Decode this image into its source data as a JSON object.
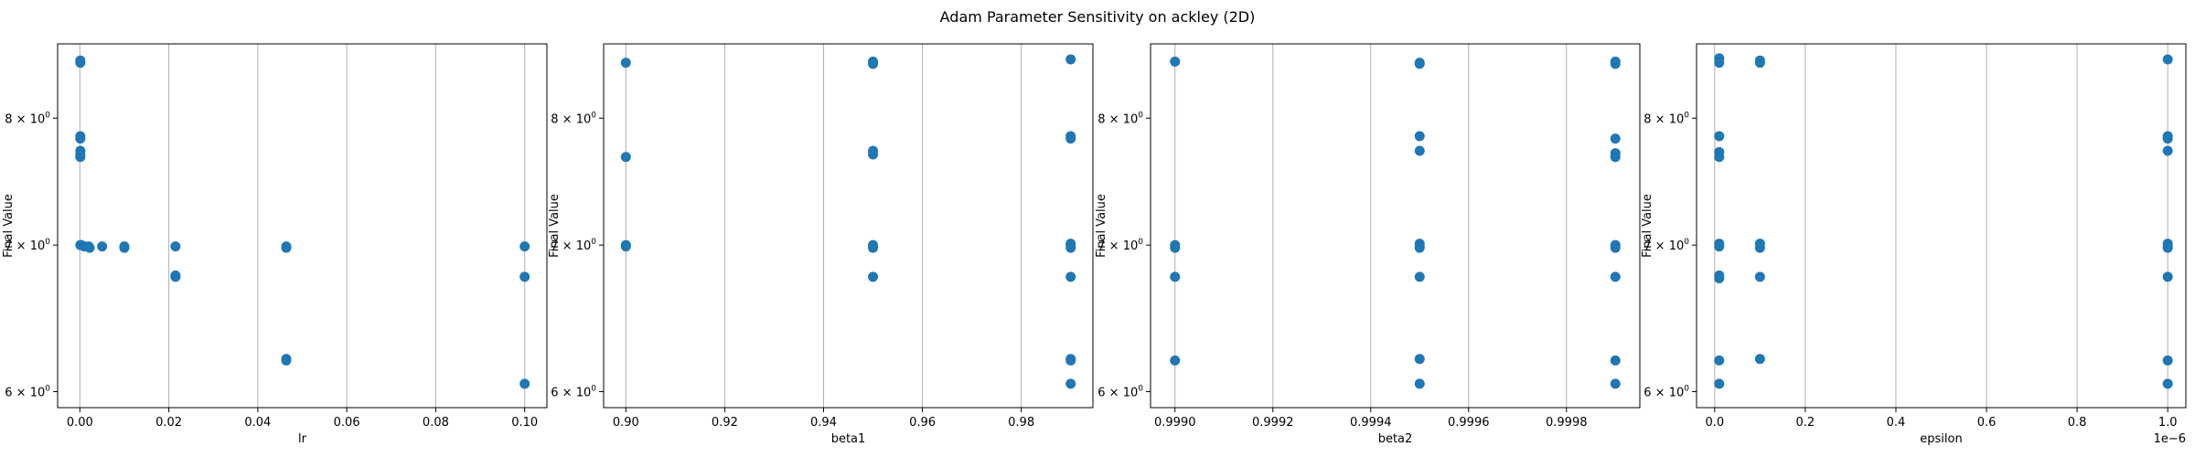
{
  "figure": {
    "title": "Adam Parameter Sensitivity on ackley (2D)",
    "marker_color": "#1f77b4",
    "grid_color": "#b0b0b0"
  },
  "chart_data": [
    {
      "type": "scatter",
      "xlabel": "lr",
      "ylabel": "Final Value",
      "xlim": [
        -0.005,
        0.105
      ],
      "ylim": [
        5.9,
        8.65
      ],
      "yscale": "log",
      "grid": "x-axis only",
      "xticks": [
        0.0,
        0.02,
        0.04,
        0.06,
        0.08,
        0.1
      ],
      "xtick_labels": [
        "0.00",
        "0.02",
        "0.04",
        "0.06",
        "0.08",
        "0.10"
      ],
      "yticks": [
        6,
        7,
        8
      ],
      "ytick_labels": [
        [
          "6",
          "0"
        ],
        [
          "7",
          "0"
        ],
        [
          "8",
          "0"
        ]
      ],
      "axis_offset": "",
      "x": [
        0.0001,
        0.0001,
        0.0001,
        0.0001,
        0.0001,
        0.0001,
        0.0001,
        0.0001,
        0.0003,
        0.001,
        0.002,
        0.0022,
        0.005,
        0.01,
        0.01,
        0.0215,
        0.0215,
        0.0215,
        0.0464,
        0.0464,
        0.0464,
        0.0464,
        0.1,
        0.1,
        0.1
      ],
      "y": [
        8.5,
        8.48,
        7.85,
        7.83,
        7.73,
        7.7,
        7.68,
        7.0,
        7.0,
        6.99,
        6.99,
        6.98,
        6.99,
        6.99,
        6.98,
        6.99,
        6.78,
        6.77,
        6.99,
        6.98,
        6.21,
        6.2,
        6.99,
        6.77,
        6.05
      ]
    },
    {
      "type": "scatter",
      "xlabel": "beta1",
      "ylabel": "Final Value",
      "xlim": [
        0.8955,
        0.9945
      ],
      "ylim": [
        5.9,
        8.65
      ],
      "yscale": "log",
      "grid": "x-axis only",
      "xticks": [
        0.9,
        0.92,
        0.94,
        0.96,
        0.98
      ],
      "xtick_labels": [
        "0.90",
        "0.92",
        "0.94",
        "0.96",
        "0.98"
      ],
      "yticks": [
        6,
        7,
        8
      ],
      "ytick_labels": [
        [
          "6",
          "0"
        ],
        [
          "7",
          "0"
        ],
        [
          "8",
          "0"
        ]
      ],
      "axis_offset": "",
      "x": [
        0.9,
        0.9,
        0.9,
        0.9,
        0.95,
        0.95,
        0.95,
        0.95,
        0.95,
        0.95,
        0.95,
        0.99,
        0.99,
        0.99,
        0.99,
        0.99,
        0.99,
        0.99,
        0.99,
        0.99,
        0.99
      ],
      "y": [
        8.48,
        7.68,
        7.0,
        6.99,
        8.49,
        8.47,
        7.73,
        7.7,
        7.0,
        6.98,
        6.77,
        8.51,
        7.85,
        7.83,
        7.01,
        7.0,
        6.98,
        6.77,
        6.21,
        6.2,
        6.05
      ]
    },
    {
      "type": "scatter",
      "xlabel": "beta2",
      "ylabel": "Final Value",
      "xlim": [
        0.99895,
        0.99995
      ],
      "ylim": [
        5.9,
        8.65
      ],
      "yscale": "log",
      "grid": "x-axis only",
      "xticks": [
        0.999,
        0.9992,
        0.9994,
        0.9996,
        0.9998
      ],
      "xtick_labels": [
        "0.9990",
        "0.9992",
        "0.9994",
        "0.9996",
        "0.9998"
      ],
      "yticks": [
        6,
        7,
        8
      ],
      "ytick_labels": [
        [
          "6",
          "0"
        ],
        [
          "7",
          "0"
        ],
        [
          "8",
          "0"
        ]
      ],
      "axis_offset": "",
      "x": [
        0.999,
        0.999,
        0.999,
        0.999,
        0.999,
        0.9995,
        0.9995,
        0.9995,
        0.9995,
        0.9995,
        0.9995,
        0.9995,
        0.9995,
        0.9995,
        0.9995,
        0.9999,
        0.9999,
        0.9999,
        0.9999,
        0.9999,
        0.9999,
        0.9999,
        0.9999,
        0.9999,
        0.9999
      ],
      "y": [
        8.49,
        7.0,
        6.98,
        6.77,
        6.2,
        8.48,
        8.47,
        7.85,
        7.73,
        7.01,
        6.99,
        6.98,
        6.77,
        6.21,
        6.05,
        8.49,
        8.47,
        7.83,
        7.71,
        7.68,
        7.0,
        6.98,
        6.77,
        6.2,
        6.05
      ]
    },
    {
      "type": "scatter",
      "xlabel": "epsilon",
      "ylabel": "Final Value",
      "xlim": [
        -0.04,
        1.04
      ],
      "ylim": [
        5.9,
        8.65
      ],
      "yscale": "log",
      "grid": "x-axis only",
      "xticks": [
        0.0,
        0.2,
        0.4,
        0.6,
        0.8,
        1.0
      ],
      "xtick_labels": [
        "0.0",
        "0.2",
        "0.4",
        "0.6",
        "0.8",
        "1.0"
      ],
      "yticks": [
        6,
        7,
        8
      ],
      "ytick_labels": [
        [
          "6",
          "0"
        ],
        [
          "7",
          "0"
        ],
        [
          "8",
          "0"
        ]
      ],
      "axis_offset": "1e−6",
      "x": [
        0.01,
        0.01,
        0.01,
        0.01,
        0.01,
        0.01,
        0.01,
        0.01,
        0.01,
        0.01,
        0.01,
        0.1,
        0.1,
        0.1,
        0.1,
        0.1,
        0.1,
        1.0,
        1.0,
        1.0,
        1.0,
        1.0,
        1.0,
        1.0,
        1.0,
        1.0,
        1.0
      ],
      "y": [
        8.52,
        8.48,
        7.85,
        7.72,
        7.68,
        7.01,
        6.99,
        6.78,
        6.76,
        6.2,
        6.05,
        8.5,
        8.48,
        7.01,
        6.98,
        6.77,
        6.21,
        8.51,
        7.85,
        7.83,
        7.73,
        7.01,
        6.99,
        6.98,
        6.77,
        6.2,
        6.05
      ]
    }
  ]
}
